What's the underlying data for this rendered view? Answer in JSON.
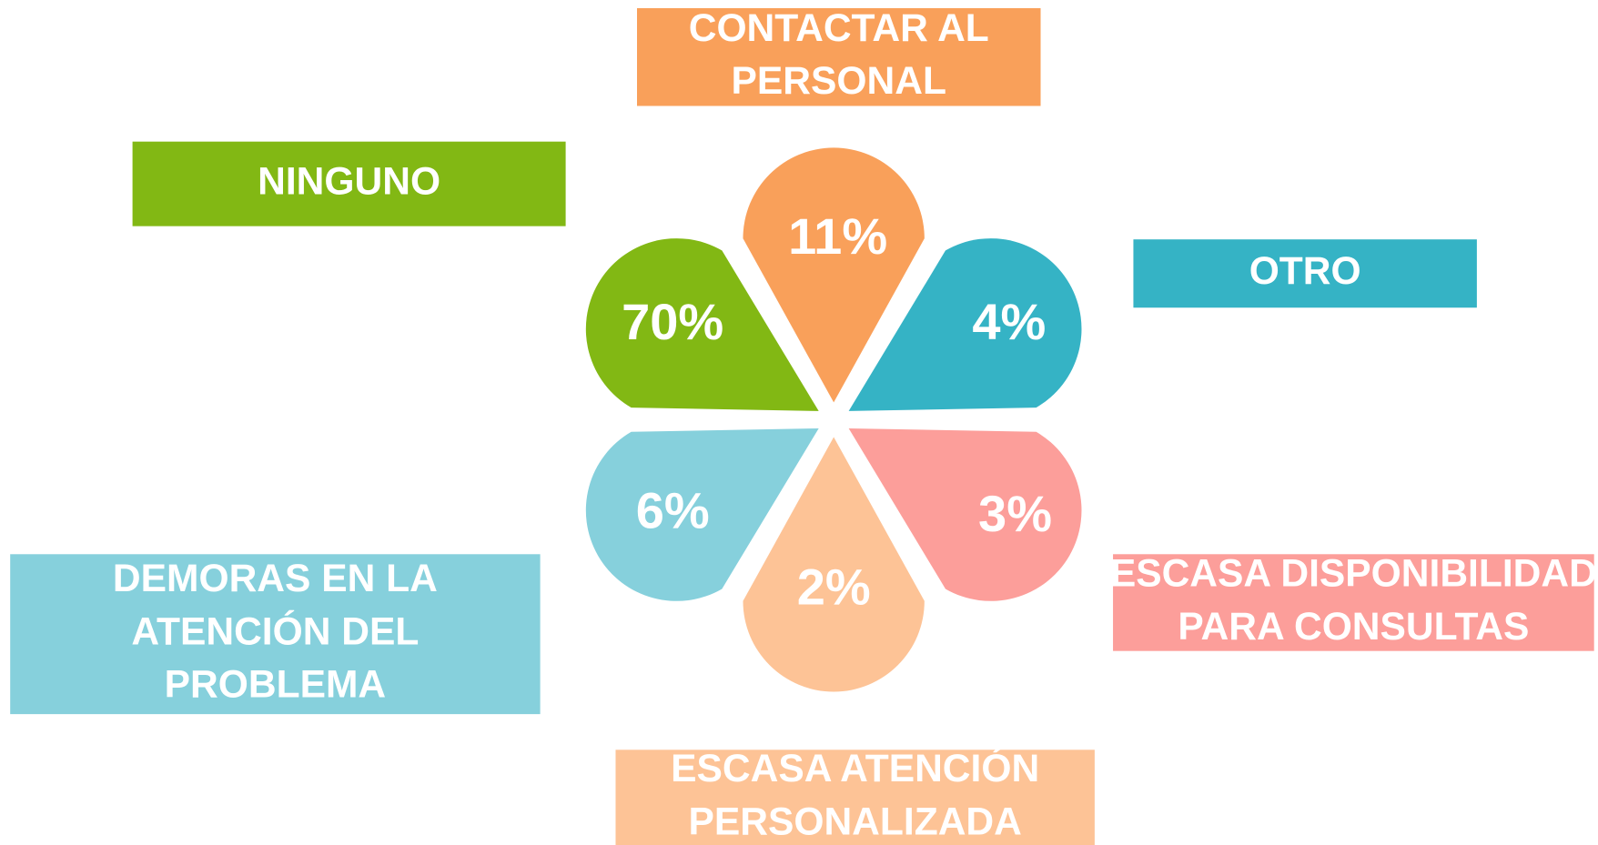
{
  "items": [
    {
      "label": [
        "CONTACTAR AL",
        "PERSONAL"
      ],
      "value": "11%",
      "color": "#f9a05a"
    },
    {
      "label": [
        "OTRO"
      ],
      "value": "4%",
      "color": "#35b3c5"
    },
    {
      "label": [
        "ESCASA DISPONIBILIDAD",
        "PARA CONSULTAS"
      ],
      "value": "3%",
      "color": "#fc9e9a"
    },
    {
      "label": [
        "ESCASA ATENCIÓN",
        "PERSONALIZADA"
      ],
      "value": "2%",
      "color": "#fdc396"
    },
    {
      "label": [
        "DEMORAS EN LA",
        "ATENCIÓN DEL",
        "PROBLEMA"
      ],
      "value": "6%",
      "color": "#86d0dc"
    },
    {
      "label": [
        "NINGUNO"
      ],
      "value": "70%",
      "color": "#82b814"
    }
  ]
}
